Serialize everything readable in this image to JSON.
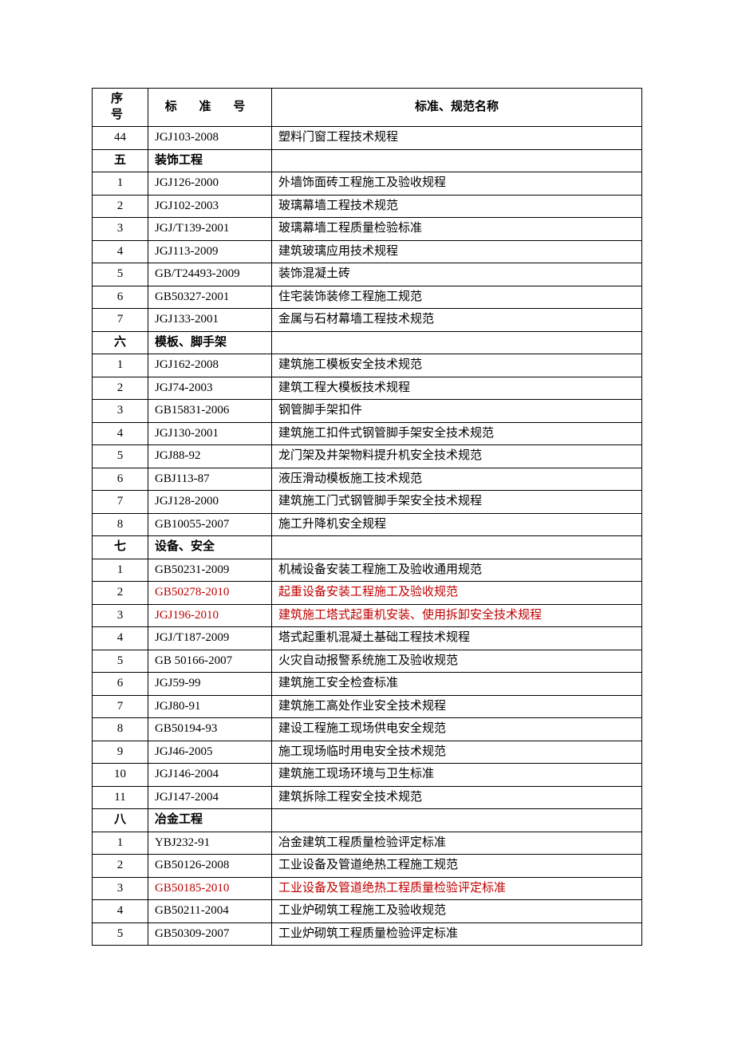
{
  "headers": {
    "sn": "序 号",
    "code": "标 准 号",
    "name": "标准、规范名称"
  },
  "rows": [
    {
      "sn": "44",
      "code": "JGJ103-2008",
      "name": "塑料门窗工程技术规程",
      "section": false,
      "red": false
    },
    {
      "sn": "五",
      "code": "装饰工程",
      "name": "",
      "section": true,
      "red": false
    },
    {
      "sn": "1",
      "code": "JGJ126-2000",
      "name": "外墙饰面砖工程施工及验收规程",
      "section": false,
      "red": false
    },
    {
      "sn": "2",
      "code": "JGJ102-2003",
      "name": "玻璃幕墙工程技术规范",
      "section": false,
      "red": false
    },
    {
      "sn": "3",
      "code": "JGJ/T139-2001",
      "name": "玻璃幕墙工程质量检验标准",
      "section": false,
      "red": false
    },
    {
      "sn": "4",
      "code": "JGJ113-2009",
      "name": "建筑玻璃应用技术规程",
      "section": false,
      "red": false
    },
    {
      "sn": "5",
      "code": "GB/T24493-2009",
      "name": "装饰混凝土砖",
      "section": false,
      "red": false
    },
    {
      "sn": "6",
      "code": "GB50327-2001",
      "name": "住宅装饰装修工程施工规范",
      "section": false,
      "red": false
    },
    {
      "sn": "7",
      "code": "JGJ133-2001",
      "name": "金属与石材幕墙工程技术规范",
      "section": false,
      "red": false
    },
    {
      "sn": "六",
      "code": "模板、脚手架",
      "name": "",
      "section": true,
      "red": false
    },
    {
      "sn": "1",
      "code": "JGJ162-2008",
      "name": "建筑施工模板安全技术规范",
      "section": false,
      "red": false
    },
    {
      "sn": "2",
      "code": "JGJ74-2003",
      "name": "建筑工程大模板技术规程",
      "section": false,
      "red": false
    },
    {
      "sn": "3",
      "code": "GB15831-2006",
      "name": "钢管脚手架扣件",
      "section": false,
      "red": false
    },
    {
      "sn": "4",
      "code": "JGJ130-2001",
      "name": "建筑施工扣件式钢管脚手架安全技术规范",
      "section": false,
      "red": false
    },
    {
      "sn": "5",
      "code": "JGJ88-92",
      "name": "龙门架及井架物料提升机安全技术规范",
      "section": false,
      "red": false
    },
    {
      "sn": "6",
      "code": "GBJ113-87",
      "name": "液压滑动模板施工技术规范",
      "section": false,
      "red": false
    },
    {
      "sn": "7",
      "code": "JGJ128-2000",
      "name": "建筑施工门式钢管脚手架安全技术规程",
      "section": false,
      "red": false
    },
    {
      "sn": "8",
      "code": "GB10055-2007",
      "name": "施工升降机安全规程",
      "section": false,
      "red": false
    },
    {
      "sn": "七",
      "code": "设备、安全",
      "name": "",
      "section": true,
      "red": false
    },
    {
      "sn": "1",
      "code": "GB50231-2009",
      "name": "机械设备安装工程施工及验收通用规范",
      "section": false,
      "red": false
    },
    {
      "sn": "2",
      "code": "GB50278-2010",
      "name": "起重设备安装工程施工及验收规范",
      "section": false,
      "red": true
    },
    {
      "sn": "3",
      "code": "JGJ196-2010",
      "name": "建筑施工塔式起重机安装、使用拆卸安全技术规程",
      "section": false,
      "red": true
    },
    {
      "sn": "4",
      "code": "JGJ/T187-2009",
      "name": "塔式起重机混凝土基础工程技术规程",
      "section": false,
      "red": false
    },
    {
      "sn": "5",
      "code": "GB 50166-2007",
      "name": "火灾自动报警系统施工及验收规范",
      "section": false,
      "red": false
    },
    {
      "sn": "6",
      "code": "JGJ59-99",
      "name": "建筑施工安全检查标准",
      "section": false,
      "red": false
    },
    {
      "sn": "7",
      "code": "JGJ80-91",
      "name": "建筑施工高处作业安全技术规程",
      "section": false,
      "red": false
    },
    {
      "sn": "8",
      "code": "GB50194-93",
      "name": "建设工程施工现场供电安全规范",
      "section": false,
      "red": false
    },
    {
      "sn": "9",
      "code": "JGJ46-2005",
      "name": "施工现场临时用电安全技术规范",
      "section": false,
      "red": false
    },
    {
      "sn": "10",
      "code": "JGJ146-2004",
      "name": "建筑施工现场环境与卫生标准",
      "section": false,
      "red": false
    },
    {
      "sn": "11",
      "code": "JGJ147-2004",
      "name": "建筑拆除工程安全技术规范",
      "section": false,
      "red": false
    },
    {
      "sn": "八",
      "code": "冶金工程",
      "name": "",
      "section": true,
      "red": false
    },
    {
      "sn": "1",
      "code": "YBJ232-91",
      "name": "冶金建筑工程质量检验评定标准",
      "section": false,
      "red": false
    },
    {
      "sn": "2",
      "code": "GB50126-2008",
      "name": "工业设备及管道绝热工程施工规范",
      "section": false,
      "red": false
    },
    {
      "sn": "3",
      "code": "GB50185-2010",
      "name": "工业设备及管道绝热工程质量检验评定标准",
      "section": false,
      "red": true
    },
    {
      "sn": "4",
      "code": "GB50211-2004",
      "name": "工业炉砌筑工程施工及验收规范",
      "section": false,
      "red": false
    },
    {
      "sn": "5",
      "code": "GB50309-2007",
      "name": "工业炉砌筑工程质量检验评定标准",
      "section": false,
      "red": false
    }
  ],
  "colors": {
    "text": "#000000",
    "red": "#c00000",
    "border": "#000000",
    "background": "#ffffff"
  }
}
